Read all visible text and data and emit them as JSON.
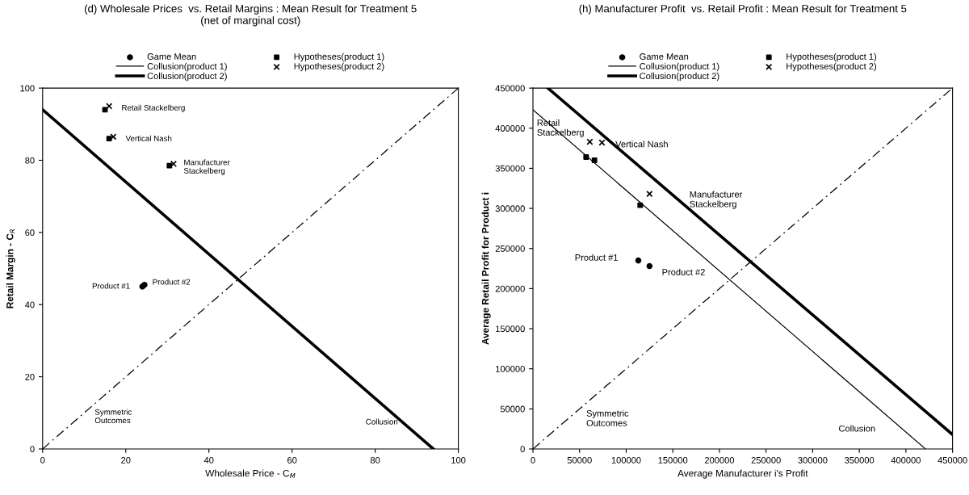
{
  "chart_data": [
    {
      "type": "scatter",
      "title": "(d) Wholesale Prices  vs. Retail Margins : Mean Result for Treatment 5",
      "subtitle": "(net of marginal cost)",
      "xlabel": "Wholesale Price - C$_{M}$",
      "ylabel": "Retail Margin - C$_{R}$",
      "xlim": [
        0,
        100
      ],
      "ylim": [
        0,
        100
      ],
      "xticks": [
        0,
        20,
        40,
        60,
        80,
        100
      ],
      "yticks": [
        0,
        20,
        40,
        60,
        80,
        100
      ],
      "grid": false,
      "legend": "top",
      "series": [
        {
          "name": "Game Mean",
          "marker": "circle",
          "color": "#000000",
          "x": [
            24,
            24.5
          ],
          "values": [
            45,
            45.5
          ]
        },
        {
          "name": "Collusion(product 1)",
          "type": "line",
          "line_style": "solid",
          "color": "#000000"
        },
        {
          "name": "Collusion(product 2)",
          "type": "line",
          "line_style": "solid",
          "color": "#000000",
          "x": [
            0,
            94
          ],
          "values": [
            94,
            0
          ]
        },
        {
          "name": "Hypotheses(product 1)",
          "marker": "square",
          "color": "#000000",
          "x": [
            15,
            16,
            30.5
          ],
          "values": [
            94,
            86,
            78.5
          ]
        },
        {
          "name": "Hypotheses(product 2)",
          "marker": "cross",
          "color": "#000000",
          "x": [
            16,
            17,
            31.5
          ],
          "values": [
            95,
            86.5,
            79
          ]
        },
        {
          "type": "line",
          "line_style": "dashed",
          "color": "#000000",
          "x": [
            0,
            100
          ],
          "values": [
            0,
            100
          ]
        }
      ],
      "annotations": [
        {
          "text": "Retail Stackelberg",
          "x": 16,
          "y": 95
        },
        {
          "text": "Vertical Nash",
          "x": 17,
          "y": 86.5
        },
        {
          "text": "Manufacturer\nStackelberg",
          "x": 31.5,
          "y": 79
        },
        {
          "text": "Product #1",
          "x": 24,
          "y": 45
        },
        {
          "text": "Product #2",
          "x": 24.5,
          "y": 45.5
        },
        {
          "text": "Symmetric\nOutcomes",
          "x": 12,
          "y": 12
        },
        {
          "text": "Collusion",
          "x": 86,
          "y": 8
        }
      ]
    },
    {
      "type": "scatter",
      "title": "(h) Manufacturer Profit  vs. Retail Profit : Mean Result for Treatment 5",
      "xlabel": "Average Manufacturer i's Profit",
      "ylabel": "Average Retail Profit for Product i",
      "xlim": [
        0,
        450000
      ],
      "ylim": [
        0,
        450000
      ],
      "xticks": [
        0,
        50000,
        100000,
        150000,
        200000,
        250000,
        300000,
        350000,
        400000,
        450000
      ],
      "yticks": [
        0,
        50000,
        100000,
        150000,
        200000,
        250000,
        300000,
        350000,
        400000,
        450000
      ],
      "grid": false,
      "legend": "top",
      "series": [
        {
          "name": "Game Mean",
          "marker": "circle",
          "color": "#000000",
          "x": [
            113000,
            125000
          ],
          "values": [
            235000,
            228000
          ]
        },
        {
          "name": "Collusion(product 1)",
          "type": "line",
          "line_style": "solid",
          "color": "#000000",
          "x": [
            0,
            421000
          ],
          "values": [
            423000,
            0
          ]
        },
        {
          "name": "Collusion(product 2)",
          "type": "line",
          "line_style": "solid",
          "color": "#000000",
          "x": [
            16000,
            450000
          ],
          "values": [
            450000,
            18000
          ]
        },
        {
          "name": "Hypotheses(product 1)",
          "marker": "square",
          "color": "#000000",
          "x": [
            57000,
            66000,
            115000
          ],
          "values": [
            364000,
            360000,
            304000
          ]
        },
        {
          "name": "Hypotheses(product 2)",
          "marker": "cross",
          "color": "#000000",
          "x": [
            61000,
            74000,
            125000
          ],
          "values": [
            383000,
            382000,
            318000
          ]
        },
        {
          "type": "line",
          "line_style": "dashed",
          "color": "#000000",
          "x": [
            0,
            450000
          ],
          "values": [
            0,
            450000
          ]
        }
      ],
      "annotations": [
        {
          "text": "Retail\nStackelberg",
          "x": 61000,
          "y": 383000
        },
        {
          "text": "Vertical Nash",
          "x": 74000,
          "y": 382000
        },
        "Manufacturer\nStackelberg",
        {
          "text": "Product #1",
          "x": 113000,
          "y": 235000
        },
        {
          "text": "Product #2",
          "x": 125000,
          "y": 228000
        },
        {
          "text": "Symmetric\nOutcomes",
          "x": 50000,
          "y": 50000
        },
        {
          "text": "Collusion",
          "x": 395000,
          "y": 26000
        }
      ]
    }
  ]
}
